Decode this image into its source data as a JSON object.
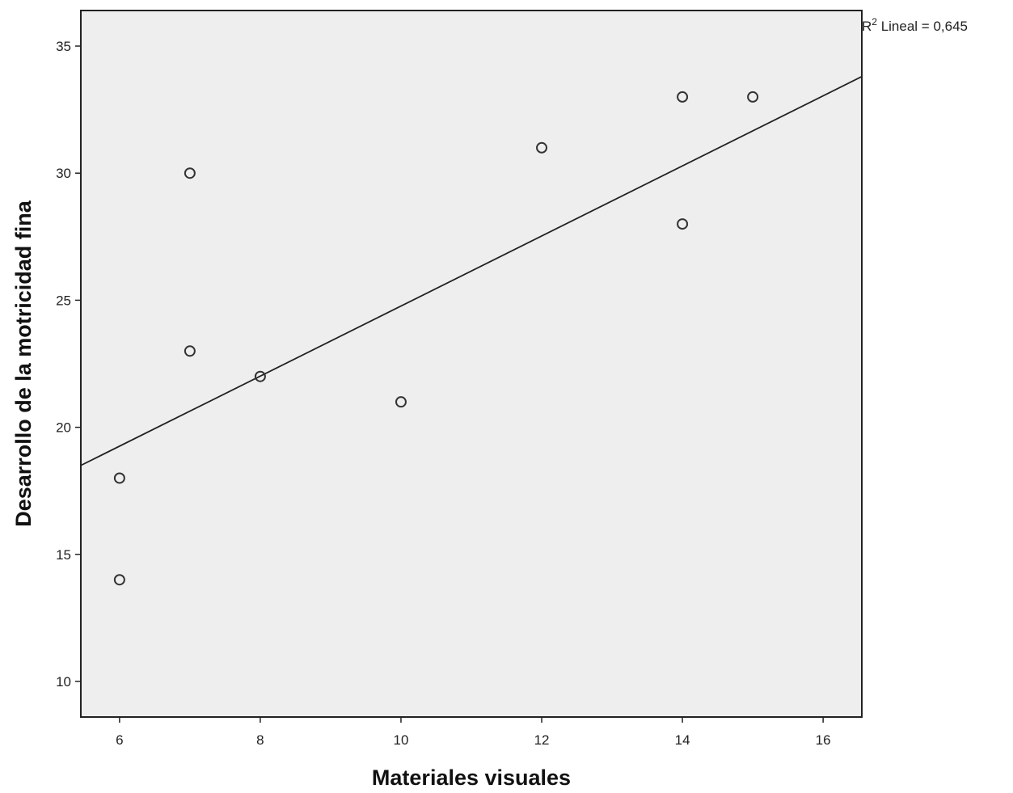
{
  "chart_data": {
    "type": "scatter",
    "title": "",
    "xlabel": "Materiales visuales",
    "ylabel": "Desarrollo de la motricidad fina",
    "xlim": [
      5.45,
      16.55
    ],
    "ylim": [
      8.6,
      36.4
    ],
    "x_ticks": [
      6,
      8,
      10,
      12,
      14,
      16
    ],
    "y_ticks": [
      10,
      15,
      20,
      25,
      30,
      35
    ],
    "points": [
      {
        "x": 6,
        "y": 14
      },
      {
        "x": 6,
        "y": 18
      },
      {
        "x": 7,
        "y": 23
      },
      {
        "x": 7,
        "y": 30
      },
      {
        "x": 8,
        "y": 22
      },
      {
        "x": 10,
        "y": 21
      },
      {
        "x": 12,
        "y": 31
      },
      {
        "x": 14,
        "y": 33
      },
      {
        "x": 14,
        "y": 28
      },
      {
        "x": 15,
        "y": 33
      }
    ],
    "fit_line": {
      "x": [
        5.45,
        16.55
      ],
      "y": [
        18.5,
        33.8
      ]
    },
    "r2_label": {
      "prefix": "R",
      "superscript": "2",
      "text": " Lineal = 0,645"
    },
    "plot_background": "#eeeeee",
    "marker_color": "#333333",
    "grid": false,
    "legend": "none"
  }
}
